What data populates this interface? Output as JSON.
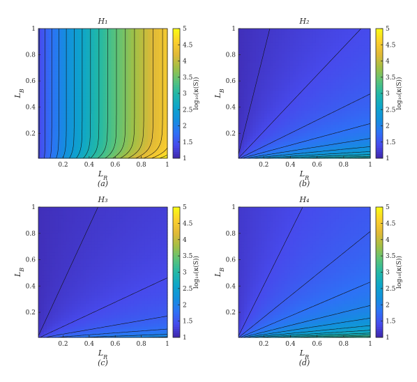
{
  "chart_data": [
    {
      "type": "heatmap",
      "title": "H₁",
      "caption": "(a)",
      "xlabel": "L_R",
      "ylabel": "L_B",
      "xticks": [
        "0.2",
        "0.4",
        "0.6",
        "0.8",
        "1"
      ],
      "yticks": [
        "0.2",
        "0.4",
        "0.6",
        "0.8",
        "1"
      ],
      "xlim": [
        0.01,
        1
      ],
      "ylim": [
        0.01,
        1
      ],
      "colorbar_label": "log₁₀(κ(S))",
      "colorbar_ticks": [
        "1",
        "1.5",
        "2",
        "2.5",
        "3",
        "3.5",
        "4",
        "4.5",
        "5"
      ],
      "clim": [
        1,
        5
      ],
      "field": {
        "kind": "h1"
      }
    },
    {
      "type": "heatmap",
      "title": "H₂",
      "caption": "(b)",
      "xlabel": "L_R",
      "ylabel": "L_B",
      "xticks": [
        "0.2",
        "0.4",
        "0.6",
        "0.8",
        "1"
      ],
      "yticks": [
        "0.2",
        "0.4",
        "0.6",
        "0.8",
        "1"
      ],
      "xlim": [
        0.01,
        1
      ],
      "ylim": [
        0.01,
        1
      ],
      "colorbar_label": "log₁₀(κ(S))",
      "colorbar_ticks": [
        "1",
        "1.5",
        "2",
        "2.5",
        "3",
        "3.5",
        "4",
        "4.5",
        "5"
      ],
      "clim": [
        1,
        5
      ],
      "field": {
        "kind": "ratio",
        "base": 1.1,
        "gain": 1.05,
        "cap": 3.4
      }
    },
    {
      "type": "heatmap",
      "title": "H₃",
      "caption": "(c)",
      "xlabel": "L_R",
      "ylabel": "L_B",
      "xticks": [
        "0.2",
        "0.4",
        "0.6",
        "0.8",
        "1"
      ],
      "yticks": [
        "0.2",
        "0.4",
        "0.6",
        "0.8",
        "1"
      ],
      "xlim": [
        0.01,
        1
      ],
      "ylim": [
        0.01,
        1
      ],
      "colorbar_label": "log₁₀(κ(S))",
      "colorbar_ticks": [
        "1",
        "1.5",
        "2",
        "2.5",
        "3",
        "3.5",
        "4",
        "4.5",
        "5"
      ],
      "clim": [
        1,
        5
      ],
      "field": {
        "kind": "ratio",
        "base": 1.1,
        "gain": 0.6,
        "cap": 2.3
      }
    },
    {
      "type": "heatmap",
      "title": "H₄",
      "caption": "(d)",
      "xlabel": "L_R",
      "ylabel": "L_B",
      "xticks": [
        "0.2",
        "0.4",
        "0.6",
        "0.8",
        "1"
      ],
      "yticks": [
        "0.2",
        "0.4",
        "0.6",
        "0.8",
        "1"
      ],
      "xlim": [
        0.01,
        1
      ],
      "ylim": [
        0.01,
        1
      ],
      "colorbar_label": "log₁₀(κ(S))",
      "colorbar_ticks": [
        "1",
        "1.5",
        "2",
        "2.5",
        "3",
        "3.5",
        "4",
        "4.5",
        "5"
      ],
      "clim": [
        1,
        5
      ],
      "field": {
        "kind": "ratio",
        "base": 1.2,
        "gain": 1.15,
        "cap": 4.2
      }
    }
  ]
}
